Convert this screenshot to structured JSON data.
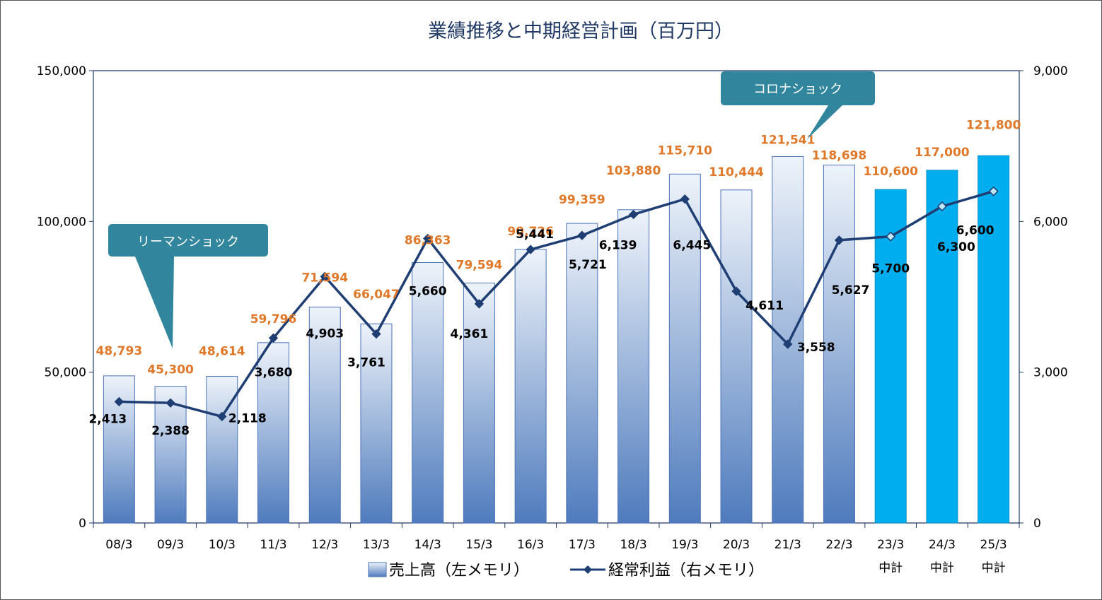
{
  "chart_data": {
    "type": "bar",
    "title": "業績推移と中期経営計画（百万円）",
    "categories": [
      "08/3",
      "09/3",
      "10/3",
      "11/3",
      "12/3",
      "13/3",
      "14/3",
      "15/3",
      "16/3",
      "17/3",
      "18/3",
      "19/3",
      "20/3",
      "21/3",
      "22/3",
      "23/3",
      "24/3",
      "25/3"
    ],
    "plan_label": "中計",
    "plan_start_index": 15,
    "left_axis": {
      "min": 0,
      "max": 150000,
      "ticks": [
        0,
        50000,
        100000,
        150000
      ],
      "tick_labels": [
        "0",
        "50,000",
        "100,000",
        "150,000"
      ]
    },
    "right_axis": {
      "min": 0,
      "max": 9000,
      "ticks": [
        0,
        3000,
        6000,
        9000
      ],
      "tick_labels": [
        "0",
        "3,000",
        "6,000",
        "9,000"
      ]
    },
    "series": [
      {
        "name": "売上高（左メモリ）",
        "type": "bar",
        "axis": "left",
        "values": [
          48793,
          45300,
          48614,
          59796,
          71594,
          66047,
          86363,
          79594,
          90726,
          99359,
          103880,
          115710,
          110444,
          121541,
          118698,
          110600,
          117000,
          121800
        ],
        "labels": [
          "48,793",
          "45,300",
          "48,614",
          "59,796",
          "71,594",
          "66,047",
          "86,363",
          "79,594",
          "90,726",
          "99,359",
          "103,880",
          "115,710",
          "110,444",
          "121,541",
          "118,698",
          "110,600",
          "117,000",
          "121,800"
        ]
      },
      {
        "name": "経常利益（右メモリ）",
        "type": "line",
        "axis": "right",
        "values": [
          2413,
          2388,
          2118,
          3680,
          4903,
          3761,
          5660,
          4361,
          5441,
          5721,
          6139,
          6445,
          4611,
          3558,
          5627,
          5700,
          6300,
          6600
        ],
        "labels": [
          "2,413",
          "2,388",
          "2,118",
          "3,680",
          "4,903",
          "3,761",
          "5,660",
          "4,361",
          "5,441",
          "5,721",
          "6,139",
          "6,445",
          "4,611",
          "3,558",
          "5,627",
          "5,700",
          "6,300",
          "6,600"
        ]
      }
    ],
    "annotations": [
      "リーマンショック",
      "コロナショック"
    ],
    "legend_position": "bottom",
    "colors": {
      "bar_top": "#eaf0f8",
      "bar_bottom": "#4f7bbd",
      "bar_stroke": "#4a73b6",
      "plan_bar": "#00aeef",
      "line": "#1f3f74",
      "value_label": "#e0782a",
      "callout": "#31859c",
      "axis": "#1f3864"
    }
  }
}
